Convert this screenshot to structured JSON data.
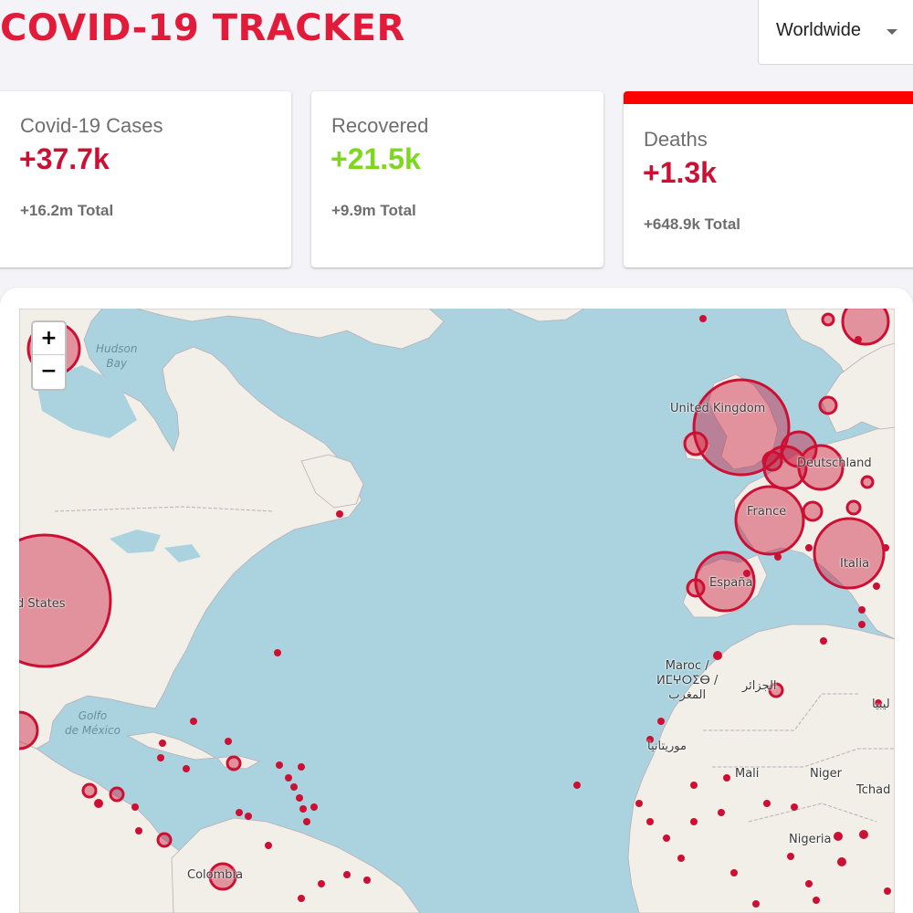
{
  "header": {
    "title": "COVID-19 TRACKER",
    "country_select": {
      "value": "Worldwide"
    }
  },
  "cards": [
    {
      "title": "Covid-19 Cases",
      "today": "+37.7k",
      "total": "+16.2m Total",
      "color": "#cc1034"
    },
    {
      "title": "Recovered",
      "today": "+21.5k",
      "total": "+9.9m Total",
      "color": "#7dd71d"
    },
    {
      "title": "Deaths",
      "today": "+1.3k",
      "total": "+648.9k Total",
      "color": "#cc1034"
    }
  ],
  "colors": {
    "accent": "#e31b3a",
    "selected_border": "#ff0000",
    "circle": "#cc1034"
  },
  "map": {
    "zoom_in": "+",
    "zoom_out": "−",
    "labels": {
      "hudson": "Hudson\nBay",
      "mexico": "Golfo\nde México",
      "usa": "d States",
      "uk": "United Kingdom",
      "de": "Deutschland",
      "fr": "France",
      "es": "España",
      "it": "Italia",
      "ma": "Maroc /\nⵍⵎⵖⵔⵉⴱ /\nالمغرب",
      "dz": "الجزائر",
      "ly": "ليبيا",
      "mr": "موريتانيا",
      "ml": "Mali",
      "ne": "Niger",
      "td": "Tchad",
      "ng": "Nigeria",
      "co": "Colombia"
    }
  }
}
